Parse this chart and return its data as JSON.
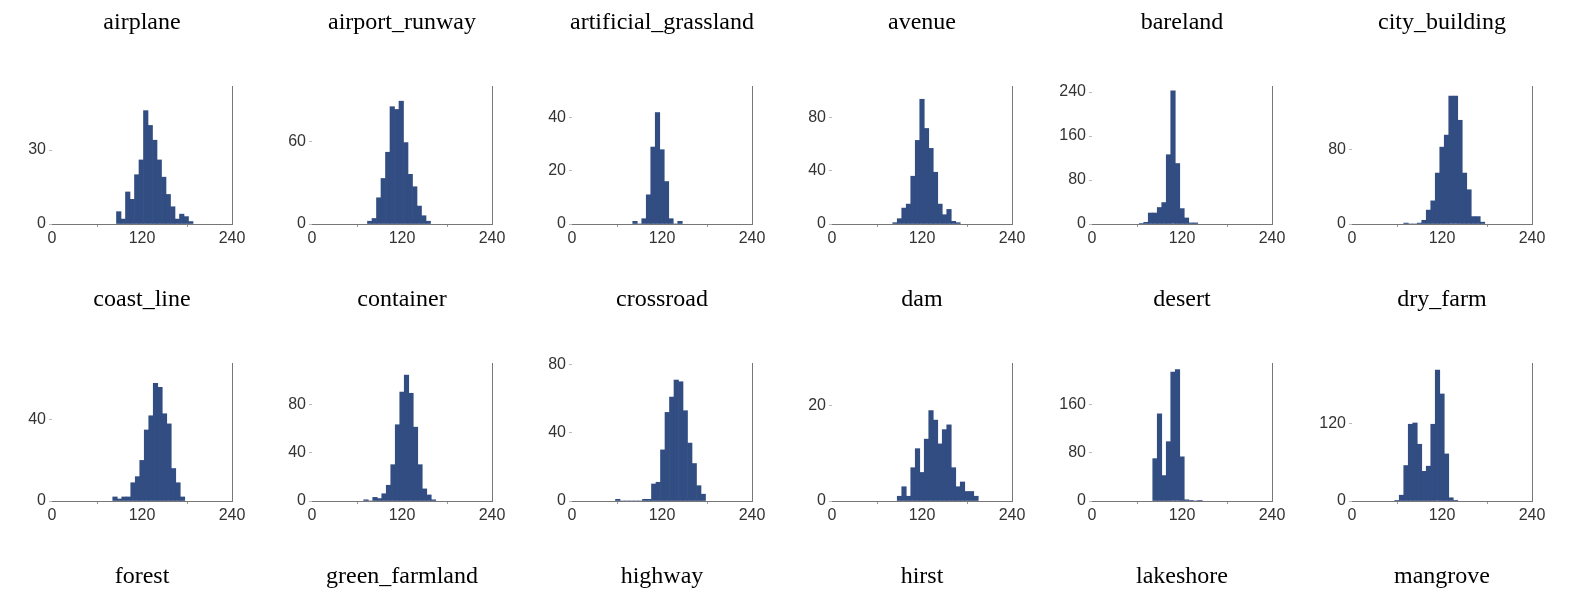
{
  "chart_data": [
    {
      "type": "histogram",
      "title": "airplane",
      "bins": [
        86,
        92,
        98,
        104,
        110,
        116,
        122,
        128,
        134,
        140,
        146,
        152,
        158,
        164,
        170,
        176,
        182,
        188
      ],
      "values": [
        5,
        2,
        13,
        10,
        20,
        26,
        46,
        40,
        34,
        26,
        19,
        12,
        7,
        2,
        4,
        3,
        1
      ],
      "color": "#324d82",
      "xlim": [
        0,
        240
      ],
      "xticks": [
        0,
        120,
        240
      ],
      "ylim": [
        0,
        56
      ],
      "yticks": [
        0,
        30
      ]
    },
    {
      "type": "histogram",
      "title": "airport_runway",
      "bins": [
        74,
        80,
        86,
        92,
        98,
        104,
        110,
        116,
        122,
        128,
        134,
        140,
        146,
        152,
        158
      ],
      "values": [
        2,
        4,
        19,
        33,
        52,
        85,
        83,
        89,
        59,
        36,
        27,
        13,
        6,
        2
      ],
      "color": "#324d82",
      "xlim": [
        0,
        240
      ],
      "xticks": [
        0,
        120,
        240
      ],
      "ylim": [
        0,
        100
      ],
      "yticks": [
        0,
        60
      ]
    },
    {
      "type": "histogram",
      "title": "artificial_grassland",
      "bins": [
        81,
        87,
        93,
        99,
        105,
        111,
        117,
        123,
        129,
        135,
        141,
        147
      ],
      "values": [
        1,
        0,
        2,
        11,
        29,
        42,
        28,
        16,
        2,
        0,
        1
      ],
      "color": "#324d82",
      "xlim": [
        0,
        240
      ],
      "xticks": [
        0,
        120,
        240
      ],
      "ylim": [
        0,
        52
      ],
      "yticks": [
        0,
        20,
        40
      ]
    },
    {
      "type": "histogram",
      "title": "avenue",
      "bins": [
        81,
        87,
        93,
        99,
        105,
        111,
        117,
        123,
        129,
        135,
        141,
        147,
        153,
        159,
        165,
        171
      ],
      "values": [
        1,
        4,
        12,
        15,
        36,
        63,
        94,
        72,
        57,
        39,
        15,
        7,
        11,
        2,
        1
      ],
      "color": "#324d82",
      "xlim": [
        0,
        240
      ],
      "xticks": [
        0,
        120,
        240
      ],
      "ylim": [
        0,
        104
      ],
      "yticks": [
        0,
        40,
        80
      ]
    },
    {
      "type": "histogram",
      "title": "bareland",
      "bins": [
        63,
        69,
        75,
        81,
        87,
        93,
        99,
        105,
        111,
        117,
        123,
        129,
        135,
        141
      ],
      "values": [
        1,
        3,
        20,
        20,
        30,
        39,
        126,
        242,
        110,
        28,
        11,
        2,
        2
      ],
      "color": "#324d82",
      "xlim": [
        0,
        240
      ],
      "xticks": [
        0,
        120,
        240
      ],
      "ylim": [
        0,
        251
      ],
      "yticks": [
        0,
        80,
        160,
        240
      ]
    },
    {
      "type": "histogram",
      "title": "city_building",
      "bins": [
        69,
        75,
        81,
        87,
        93,
        99,
        105,
        111,
        117,
        123,
        129,
        135,
        141,
        147,
        153,
        159,
        165,
        171,
        177
      ],
      "values": [
        1,
        0,
        0,
        1,
        4,
        15,
        25,
        55,
        83,
        96,
        138,
        138,
        112,
        55,
        37,
        8,
        8,
        2
      ],
      "color": "#324d82",
      "xlim": [
        0,
        240
      ],
      "xticks": [
        0,
        120,
        240
      ],
      "ylim": [
        0,
        149
      ],
      "yticks": [
        0,
        80
      ]
    },
    {
      "type": "histogram",
      "title": "coast_line",
      "bins": [
        81,
        87,
        93,
        99,
        105,
        111,
        117,
        123,
        129,
        135,
        141,
        147,
        153,
        159,
        165,
        171,
        177
      ],
      "values": [
        2,
        1,
        2,
        2,
        9,
        12,
        20,
        35,
        42,
        58,
        56,
        43,
        38,
        16,
        9,
        2
      ],
      "color": "#324d82",
      "xlim": [
        0,
        240
      ],
      "xticks": [
        0,
        120,
        240
      ],
      "ylim": [
        0,
        68
      ],
      "yticks": [
        0,
        40
      ]
    },
    {
      "type": "histogram",
      "title": "container",
      "bins": [
        69,
        75,
        81,
        87,
        93,
        99,
        105,
        111,
        117,
        123,
        129,
        135,
        141,
        147,
        153,
        159,
        165
      ],
      "values": [
        1,
        0,
        3,
        2,
        6,
        13,
        30,
        63,
        90,
        104,
        89,
        61,
        30,
        10,
        5,
        1
      ],
      "color": "#324d82",
      "xlim": [
        0,
        240
      ],
      "xticks": [
        0,
        120,
        240
      ],
      "ylim": [
        0,
        114
      ],
      "yticks": [
        0,
        40,
        80
      ]
    },
    {
      "type": "histogram",
      "title": "crossroad",
      "bins": [
        58,
        64,
        70,
        76,
        82,
        88,
        94,
        100,
        106,
        112,
        118,
        124,
        130,
        136,
        142,
        148,
        154,
        160,
        166,
        172,
        178
      ],
      "values": [
        1,
        0,
        0,
        0,
        0,
        0,
        1,
        1,
        10,
        11,
        30,
        52,
        61,
        71,
        70,
        53,
        34,
        22,
        9,
        4
      ],
      "color": "#324d82",
      "xlim": [
        0,
        240
      ],
      "xticks": [
        0,
        120,
        240
      ],
      "ylim": [
        0,
        81
      ],
      "yticks": [
        0,
        40,
        80
      ]
    },
    {
      "type": "histogram",
      "title": "dam",
      "bins": [
        87,
        93,
        99,
        105,
        111,
        117,
        123,
        129,
        135,
        141,
        147,
        153,
        159,
        165,
        171,
        177,
        183,
        189,
        195
      ],
      "values": [
        1,
        3,
        1,
        7,
        11,
        6,
        13,
        19,
        17,
        12,
        15,
        16,
        7,
        3,
        4,
        2,
        2,
        1
      ],
      "color": "#324d82",
      "xlim": [
        0,
        240
      ],
      "xticks": [
        0,
        120,
        240
      ],
      "ylim": [
        0,
        29
      ],
      "yticks": [
        0,
        20
      ]
    },
    {
      "type": "histogram",
      "title": "desert",
      "bins": [
        81,
        87,
        93,
        99,
        105,
        111,
        117,
        123,
        129,
        135,
        141,
        147
      ],
      "values": [
        70,
        144,
        42,
        98,
        213,
        217,
        73,
        2,
        1,
        0,
        1
      ],
      "color": "#324d82",
      "xlim": [
        0,
        240
      ],
      "xticks": [
        0,
        120,
        240
      ],
      "ylim": [
        0,
        228
      ],
      "yticks": [
        0,
        80,
        160
      ]
    },
    {
      "type": "histogram",
      "title": "dry_farm",
      "bins": [
        57,
        63,
        69,
        75,
        81,
        87,
        93,
        99,
        105,
        111,
        117,
        123,
        129,
        135,
        141
      ],
      "values": [
        1,
        9,
        55,
        119,
        121,
        88,
        46,
        54,
        119,
        203,
        166,
        73,
        5,
        1
      ],
      "color": "#324d82",
      "xlim": [
        0,
        240
      ],
      "xticks": [
        0,
        120,
        240
      ],
      "ylim": [
        0,
        214
      ],
      "yticks": [
        0,
        120
      ]
    },
    {
      "type": "other",
      "title": "forest"
    },
    {
      "type": "other",
      "title": "green_farmland"
    },
    {
      "type": "other",
      "title": "highway"
    },
    {
      "type": "other",
      "title": "hirst"
    },
    {
      "type": "other",
      "title": "lakeshore"
    },
    {
      "type": "other",
      "title": "mangrove"
    }
  ]
}
